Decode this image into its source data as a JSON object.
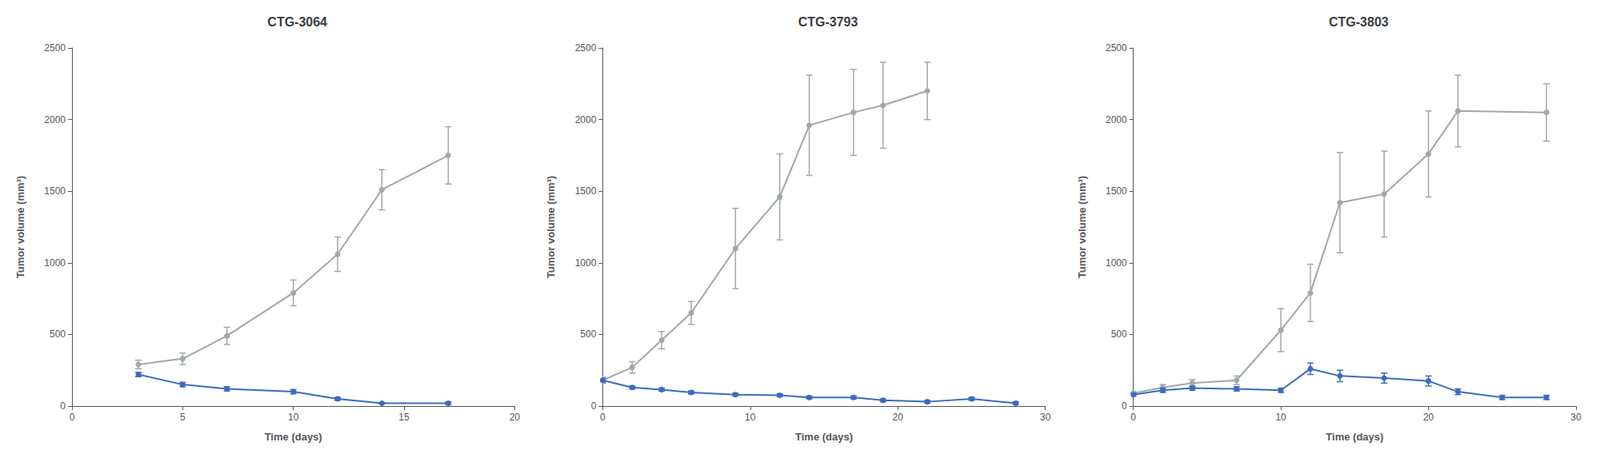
{
  "chart_data": [
    {
      "type": "line",
      "title": "CTG-3064",
      "xlabel": "Time (days)",
      "ylabel": "Tumor volume (mm³)",
      "xlim": [
        0,
        20
      ],
      "xticks": [
        0,
        5,
        10,
        15,
        20
      ],
      "ylim": [
        0,
        2500
      ],
      "yticks": [
        0,
        500,
        1000,
        1500,
        2000,
        2500
      ],
      "grid": false,
      "series": [
        {
          "color": "#a0a8a8",
          "marker": "circle",
          "line_style": "solid",
          "x": [
            3,
            5,
            7,
            10,
            12,
            14,
            17
          ],
          "values": [
            290,
            330,
            490,
            790,
            1060,
            1510,
            1750
          ],
          "yerr": [
            30,
            40,
            60,
            90,
            120,
            140,
            200
          ]
        },
        {
          "color": "#3a6bbf",
          "marker": "circle",
          "line_style": "solid",
          "x": [
            3,
            5,
            7,
            10,
            12,
            14,
            17
          ],
          "values": [
            220,
            150,
            120,
            100,
            50,
            20,
            20
          ],
          "yerr": [
            15,
            15,
            15,
            15,
            10,
            5,
            10
          ]
        }
      ]
    },
    {
      "type": "line",
      "title": "CTG-3793",
      "xlabel": "Time (days)",
      "ylabel": "Tumor volume (mm³)",
      "xlim": [
        0,
        30
      ],
      "xticks": [
        0,
        10,
        20,
        30
      ],
      "ylim": [
        0,
        2500
      ],
      "yticks": [
        0,
        500,
        1000,
        1500,
        2000,
        2500
      ],
      "grid": false,
      "series": [
        {
          "color": "#a0a8a8",
          "marker": "circle",
          "line_style": "solid",
          "x": [
            0,
            2,
            4,
            6,
            9,
            12,
            14,
            17,
            19,
            22
          ],
          "values": [
            180,
            270,
            460,
            650,
            1100,
            1460,
            1960,
            2050,
            2100,
            2200
          ],
          "yerr": [
            20,
            40,
            60,
            80,
            280,
            300,
            350,
            300,
            300,
            200
          ]
        },
        {
          "color": "#3a6bbf",
          "marker": "circle",
          "line_style": "solid",
          "x": [
            0,
            2,
            4,
            6,
            9,
            12,
            14,
            17,
            19,
            22,
            25,
            28
          ],
          "values": [
            180,
            130,
            115,
            95,
            80,
            75,
            60,
            60,
            40,
            30,
            50,
            20
          ],
          "yerr": [
            15,
            10,
            10,
            10,
            10,
            10,
            10,
            10,
            10,
            10,
            10,
            10
          ]
        }
      ]
    },
    {
      "type": "line",
      "title": "CTG-3803",
      "xlabel": "Time (days)",
      "ylabel": "Tumor volume (mm³)",
      "xlim": [
        0,
        30
      ],
      "xticks": [
        0,
        10,
        20,
        30
      ],
      "ylim": [
        0,
        2500
      ],
      "yticks": [
        0,
        500,
        1000,
        1500,
        2000,
        2500
      ],
      "grid": false,
      "series": [
        {
          "color": "#a0a8a8",
          "marker": "circle",
          "line_style": "solid",
          "x": [
            0,
            2,
            4,
            7,
            10,
            12,
            14,
            17,
            20,
            22,
            28
          ],
          "values": [
            90,
            130,
            160,
            180,
            530,
            790,
            1420,
            1480,
            1760,
            2060,
            2050
          ],
          "yerr": [
            10,
            20,
            25,
            30,
            150,
            200,
            350,
            300,
            300,
            250,
            200
          ]
        },
        {
          "color": "#3a6bbf",
          "marker": "circle",
          "line_style": "solid",
          "x": [
            0,
            2,
            4,
            7,
            10,
            12,
            14,
            17,
            20,
            22,
            25,
            28
          ],
          "values": [
            80,
            110,
            125,
            120,
            110,
            260,
            210,
            195,
            175,
            100,
            60,
            60
          ],
          "yerr": [
            10,
            15,
            15,
            15,
            15,
            40,
            40,
            35,
            35,
            20,
            15,
            15
          ]
        }
      ]
    }
  ]
}
